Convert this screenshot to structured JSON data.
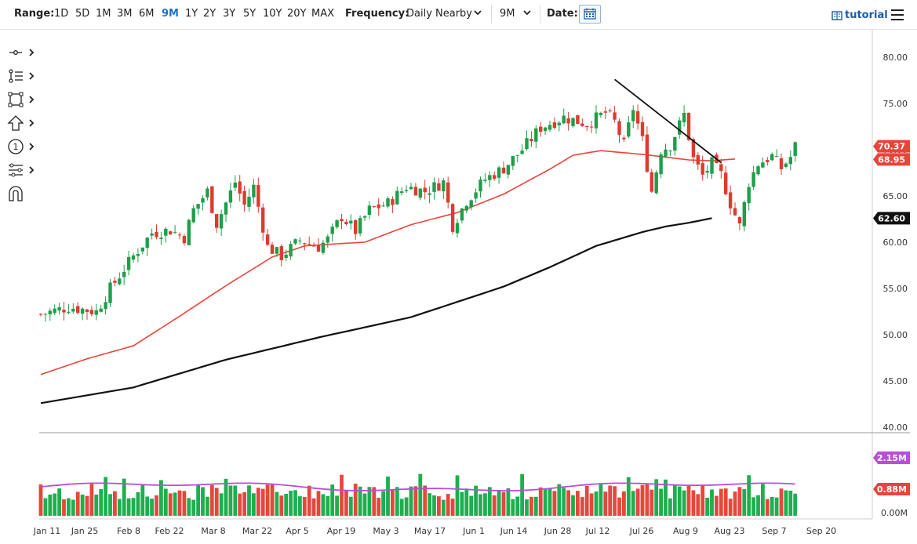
{
  "toolbar": {
    "range_label": "Range:",
    "ranges": [
      "1D",
      "5D",
      "1M",
      "3M",
      "6M",
      "9M",
      "1Y",
      "2Y",
      "3Y",
      "5Y",
      "10Y",
      "20Y",
      "MAX"
    ],
    "active_range": "9M",
    "frequency_label": "Frequency:",
    "frequency_value": "Daily Nearby",
    "period_value": "9M",
    "date_label": "Date:",
    "tutorial_label": "tutorial"
  },
  "tools": [
    {
      "name": "crosshair-tool-icon"
    },
    {
      "name": "draw-lines-tool-icon"
    },
    {
      "name": "shapes-tool-icon"
    },
    {
      "name": "arrow-tool-icon"
    },
    {
      "name": "annotation-number-tool-icon",
      "label": "1"
    },
    {
      "name": "fibonacci-tool-icon"
    },
    {
      "name": "magnet-tool-icon"
    }
  ],
  "chart_data": {
    "type": "candlestick",
    "y_axis": {
      "min": 40,
      "max": 80,
      "ticks": [
        "80.00",
        "75.00",
        "70.00",
        "65.00",
        "60.00",
        "55.00",
        "50.00",
        "45.00",
        "40.00"
      ]
    },
    "x_axis": {
      "ticks": [
        "Jan 11",
        "Jan 25",
        "Feb 8",
        "Feb 22",
        "Mar 8",
        "Mar 22",
        "Apr 5",
        "Apr 19",
        "May 3",
        "May 17",
        "Jun 1",
        "Jun 14",
        "Jun 28",
        "Jul 12",
        "Jul 26",
        "Aug 9",
        "Aug 23",
        "Sep 7",
        "Sep 20"
      ]
    },
    "last_price": {
      "value": 70.37,
      "label": "70.37",
      "color": "#e8443a"
    },
    "ma50": {
      "value": 68.95,
      "label": "68.95",
      "color": "#e8443a"
    },
    "ma200": {
      "value": 62.6,
      "label": "62.60",
      "color": "#111111"
    },
    "ma50_anchors": [
      [
        0,
        45.7
      ],
      [
        10,
        47.4
      ],
      [
        20,
        48.8
      ],
      [
        30,
        52.0
      ],
      [
        40,
        55.3
      ],
      [
        50,
        58.4
      ],
      [
        57,
        59.6
      ],
      [
        63,
        59.8
      ],
      [
        70,
        60.0
      ],
      [
        80,
        61.9
      ],
      [
        90,
        63.2
      ],
      [
        100,
        65.2
      ],
      [
        110,
        67.9
      ],
      [
        115,
        69.4
      ],
      [
        121,
        69.9
      ],
      [
        130,
        69.5
      ],
      [
        140,
        68.9
      ],
      [
        145,
        68.8
      ],
      [
        150,
        69.0
      ]
    ],
    "ma200_anchors": [
      [
        0,
        42.6
      ],
      [
        20,
        44.3
      ],
      [
        40,
        47.3
      ],
      [
        60,
        49.7
      ],
      [
        80,
        51.9
      ],
      [
        100,
        55.2
      ],
      [
        110,
        57.3
      ],
      [
        120,
        59.6
      ],
      [
        130,
        61.1
      ],
      [
        135,
        61.7
      ],
      [
        140,
        62.1
      ],
      [
        145,
        62.6
      ]
    ],
    "trendline": [
      [
        124,
        77.6
      ],
      [
        147,
        68.6
      ]
    ],
    "price_anchors": [
      [
        0,
        52.2
      ],
      [
        6,
        53.0
      ],
      [
        12,
        52.5
      ],
      [
        15,
        55.0
      ],
      [
        20,
        58.5
      ],
      [
        24,
        61.0
      ],
      [
        28,
        61.3
      ],
      [
        31,
        60.5
      ],
      [
        33,
        63.5
      ],
      [
        36,
        65.5
      ],
      [
        38,
        62.0
      ],
      [
        42,
        66.5
      ],
      [
        44,
        64.0
      ],
      [
        46,
        66.0
      ],
      [
        49,
        59.5
      ],
      [
        52,
        58.5
      ],
      [
        56,
        60.2
      ],
      [
        60,
        59.5
      ],
      [
        62,
        60.3
      ],
      [
        65,
        62.8
      ],
      [
        68,
        61.2
      ],
      [
        71,
        63.5
      ],
      [
        75,
        64.2
      ],
      [
        79,
        66.0
      ],
      [
        83,
        65.5
      ],
      [
        87,
        66.5
      ],
      [
        89,
        61.8
      ],
      [
        92,
        64.5
      ],
      [
        96,
        66.8
      ],
      [
        100,
        68.0
      ],
      [
        104,
        70.0
      ],
      [
        108,
        72.4
      ],
      [
        113,
        73.5
      ],
      [
        118,
        72.8
      ],
      [
        122,
        74.0
      ],
      [
        124,
        73.0
      ],
      [
        126,
        70.5
      ],
      [
        128,
        74.5
      ],
      [
        130,
        71.0
      ],
      [
        132,
        65.5
      ],
      [
        134,
        70.0
      ],
      [
        136,
        70.5
      ],
      [
        139,
        73.8
      ],
      [
        141,
        69.0
      ],
      [
        143,
        67.2
      ],
      [
        145,
        68.5
      ],
      [
        147,
        67.3
      ],
      [
        149,
        64.2
      ],
      [
        151,
        61.7
      ],
      [
        153,
        66.5
      ],
      [
        155,
        68.5
      ],
      [
        158,
        69.3
      ],
      [
        160,
        68.0
      ],
      [
        162,
        69.2
      ],
      [
        163,
        70.4
      ]
    ],
    "volume_axis": {
      "ticks": [
        "0.00M"
      ]
    },
    "volume_last": {
      "value": 0.88,
      "label": "0.88M",
      "color": "#e8443a"
    },
    "volume_avg": {
      "value": 2.15,
      "label": "2.15M",
      "color": "#b84fd6"
    }
  }
}
